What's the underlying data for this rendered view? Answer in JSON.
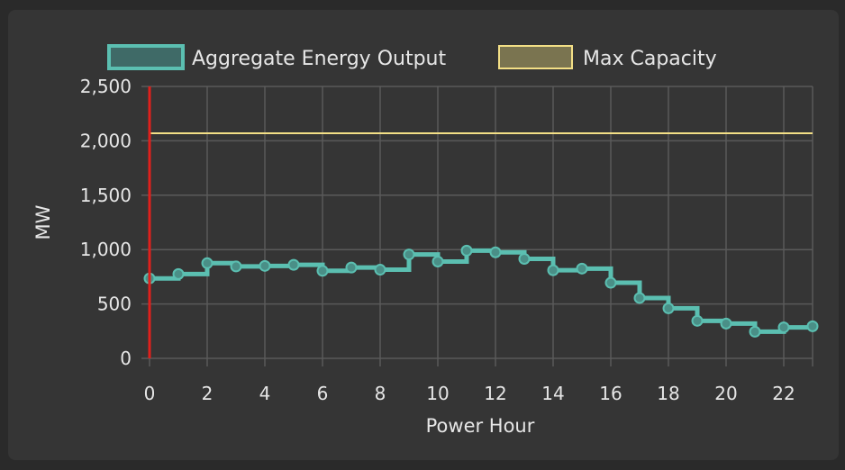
{
  "chart_data": {
    "type": "line",
    "step": "after",
    "xlabel": "Power Hour",
    "ylabel": "MW",
    "xlim": [
      0,
      23
    ],
    "ylim": [
      0,
      2500
    ],
    "x_ticks": [
      0,
      2,
      4,
      6,
      8,
      10,
      12,
      14,
      16,
      18,
      20,
      22
    ],
    "y_ticks": [
      0,
      500,
      1000,
      1500,
      2000,
      2500
    ],
    "y_tick_labels": [
      "0",
      "500",
      "1,000",
      "1,500",
      "2,000",
      "2,500"
    ],
    "grid": true,
    "legend_position": "top-center",
    "x": [
      0,
      1,
      2,
      3,
      4,
      5,
      6,
      7,
      8,
      9,
      10,
      11,
      12,
      13,
      14,
      15,
      16,
      17,
      18,
      19,
      20,
      21,
      22,
      23
    ],
    "series": [
      {
        "name": "Aggregate Energy Output",
        "color": "#5bbfb1",
        "fill": "#3f6a67",
        "values": [
          735,
          775,
          875,
          845,
          850,
          860,
          805,
          835,
          815,
          955,
          890,
          990,
          975,
          915,
          810,
          825,
          695,
          555,
          460,
          345,
          320,
          245,
          285,
          295
        ]
      },
      {
        "name": "Max Capacity",
        "color": "#f3df86",
        "fill": "#7a7450",
        "values": [
          2070,
          2070,
          2070,
          2070,
          2070,
          2070,
          2070,
          2070,
          2070,
          2070,
          2070,
          2070,
          2070,
          2070,
          2070,
          2070,
          2070,
          2070,
          2070,
          2070,
          2070,
          2070,
          2070,
          2070
        ]
      }
    ],
    "current_hour_marker": {
      "x": 0,
      "color": "#e0201c"
    }
  }
}
